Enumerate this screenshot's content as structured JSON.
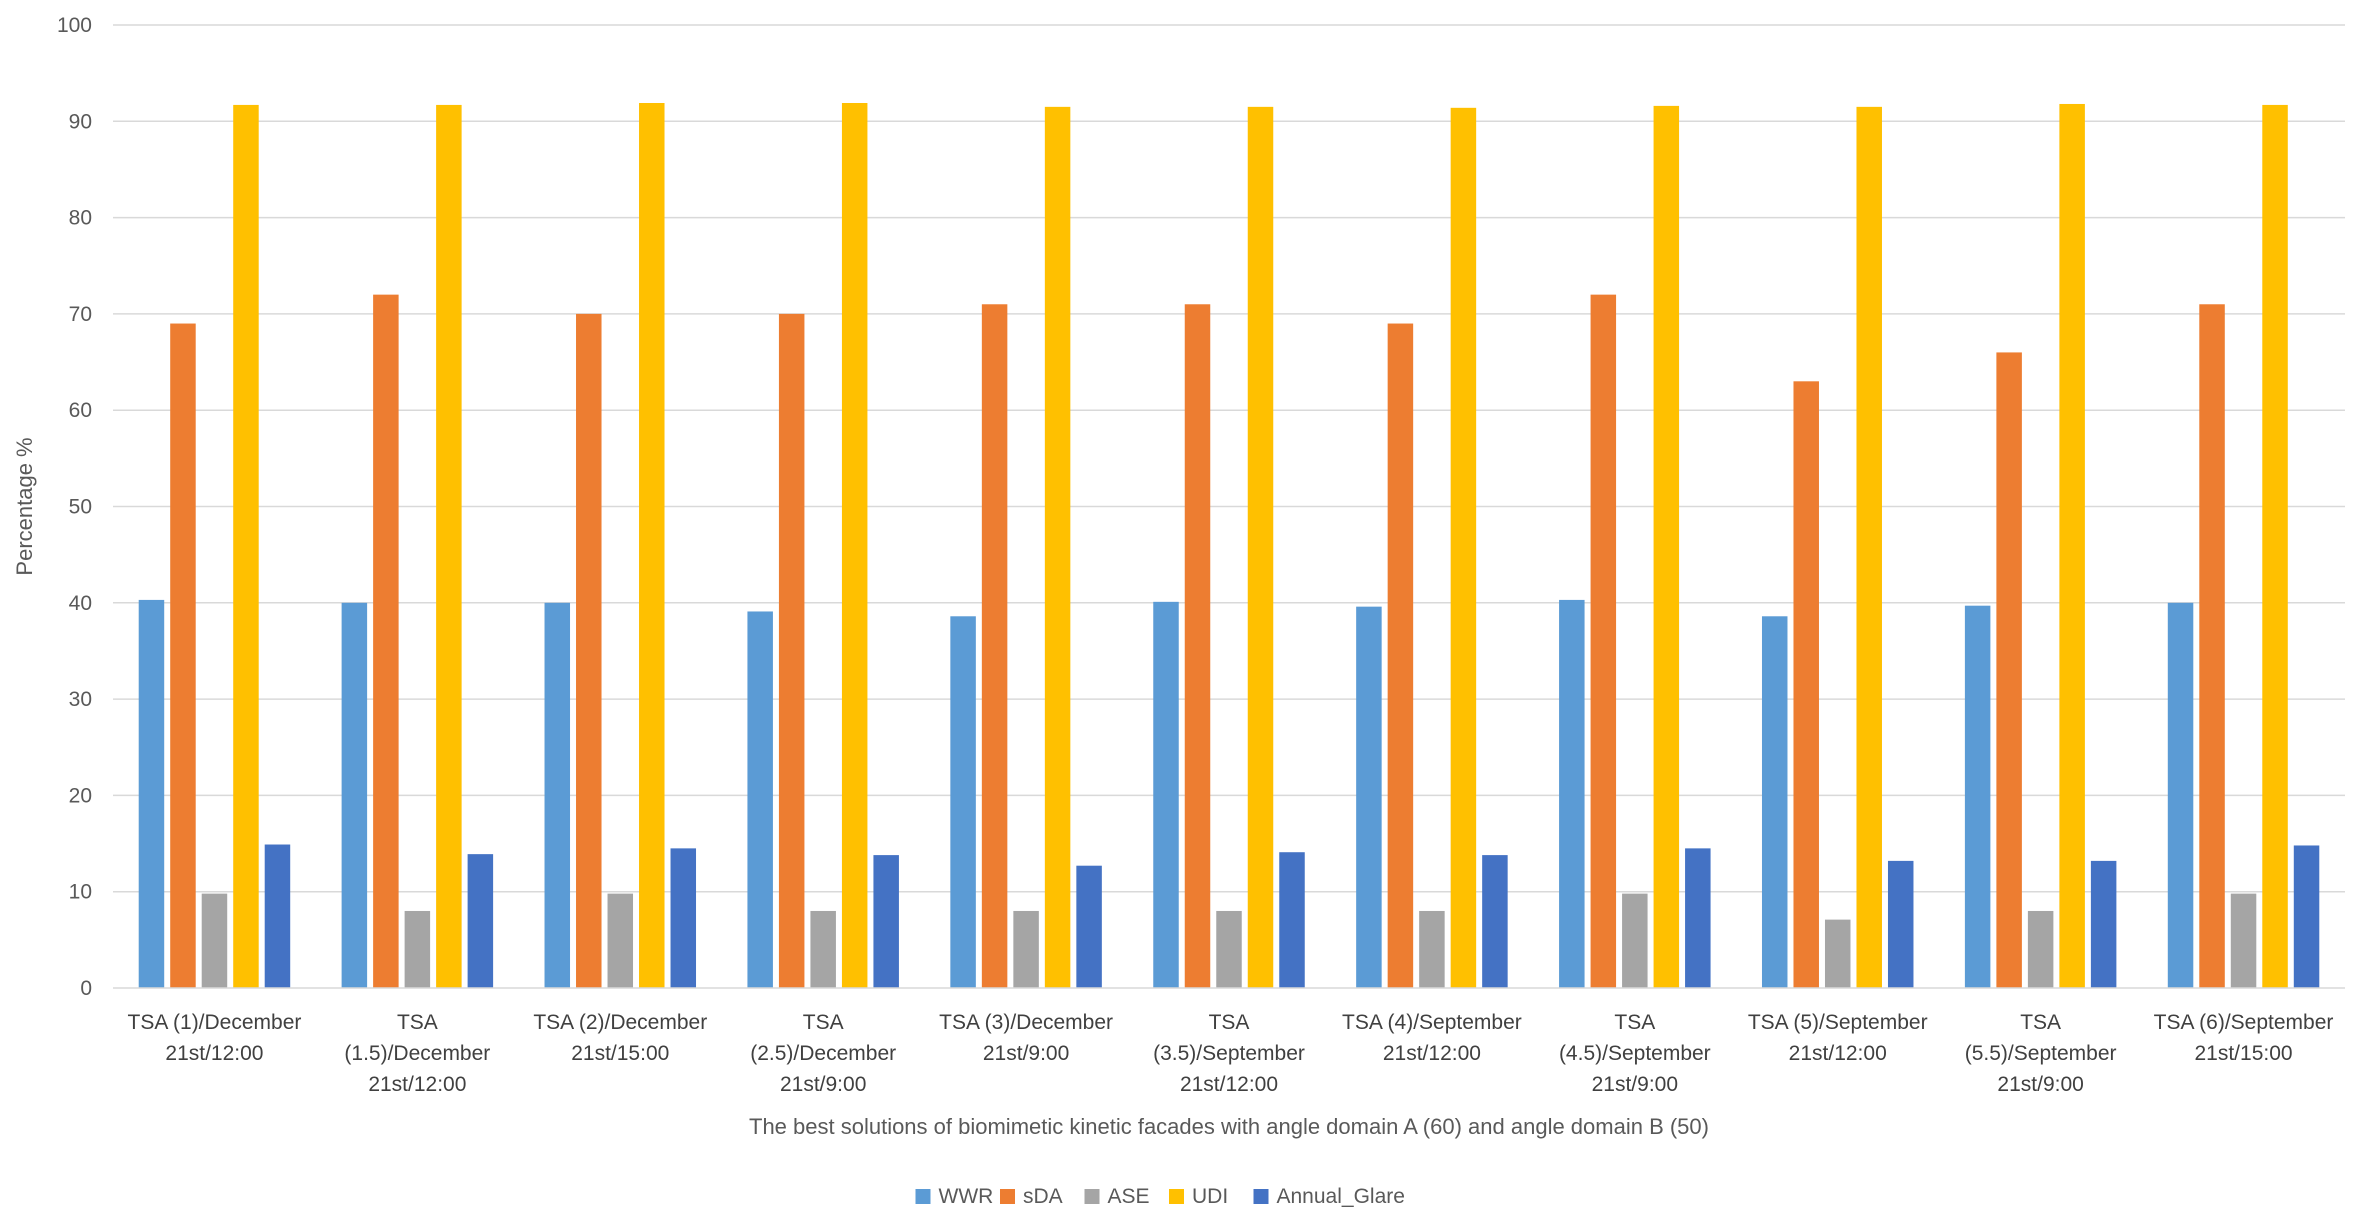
{
  "chart_data": {
    "type": "bar",
    "title": "",
    "xlabel": "The best solutions of biomimetic kinetic facades with angle domain A (60) and angle domain B (50)",
    "ylabel": "Percentage %",
    "ylim": [
      0,
      100
    ],
    "yticks": [
      0,
      10,
      20,
      30,
      40,
      50,
      60,
      70,
      80,
      90,
      100
    ],
    "grid": true,
    "legend_position": "bottom",
    "categories": [
      [
        "TSA (1)/December",
        "21st/12:00"
      ],
      [
        "TSA",
        "(1.5)/December",
        "21st/12:00"
      ],
      [
        "TSA (2)/December",
        "21st/15:00"
      ],
      [
        "TSA",
        "(2.5)/December",
        "21st/9:00"
      ],
      [
        "TSA (3)/December",
        "21st/9:00"
      ],
      [
        "TSA",
        "(3.5)/September",
        "21st/12:00"
      ],
      [
        "TSA (4)/September",
        "21st/12:00"
      ],
      [
        "TSA",
        "(4.5)/September",
        "21st/9:00"
      ],
      [
        "TSA (5)/September",
        "21st/12:00"
      ],
      [
        "TSA",
        "(5.5)/September",
        "21st/9:00"
      ],
      [
        "TSA (6)/September",
        "21st/15:00"
      ]
    ],
    "series": [
      {
        "name": "WWR",
        "color": "#5B9BD5",
        "values": [
          40.3,
          40.0,
          40.0,
          39.1,
          38.6,
          40.1,
          39.6,
          40.3,
          38.6,
          39.7,
          40.0
        ]
      },
      {
        "name": "sDA",
        "color": "#ED7D31",
        "values": [
          69,
          72,
          70,
          70,
          71,
          71,
          69,
          72,
          63,
          66,
          71
        ]
      },
      {
        "name": "ASE",
        "color": "#A5A5A5",
        "values": [
          9.8,
          8.0,
          9.8,
          8.0,
          8.0,
          8.0,
          8.0,
          9.8,
          7.1,
          8.0,
          9.8
        ]
      },
      {
        "name": "UDI",
        "color": "#FFC000",
        "values": [
          91.7,
          91.7,
          91.9,
          91.9,
          91.5,
          91.5,
          91.4,
          91.6,
          91.5,
          91.8,
          91.7
        ]
      },
      {
        "name": "Annual_Glare",
        "color": "#4472C4",
        "values": [
          14.9,
          13.9,
          14.5,
          13.8,
          12.7,
          14.1,
          13.8,
          14.5,
          13.2,
          13.2,
          14.8
        ]
      }
    ]
  }
}
